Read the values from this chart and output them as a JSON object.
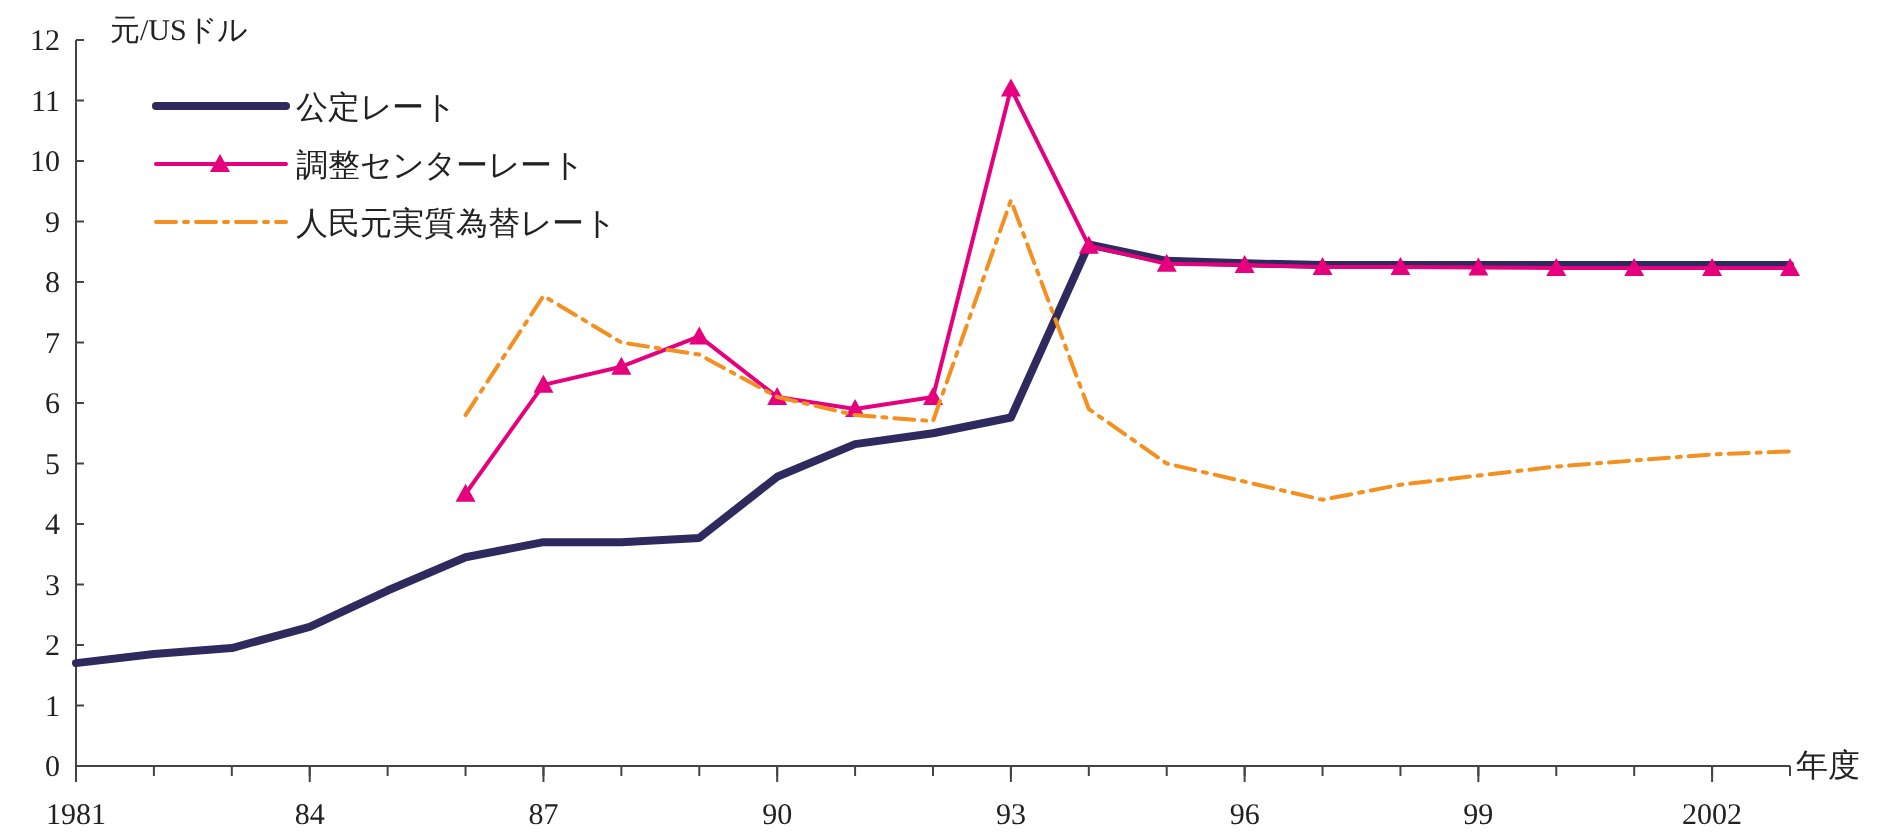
{
  "chart_data": {
    "type": "line",
    "xlabel": "年度",
    "ylabel": "元/USドル",
    "x": [
      1981,
      1982,
      1983,
      1984,
      1985,
      1986,
      1987,
      1988,
      1989,
      1990,
      1991,
      1992,
      1993,
      1994,
      1995,
      1996,
      1997,
      1998,
      1999,
      2000,
      2001,
      2002,
      2003
    ],
    "xlim": [
      1981,
      2003
    ],
    "xticks": [
      1981,
      {
        "value": 1984,
        "label": "84"
      },
      {
        "value": 1987,
        "label": "87"
      },
      {
        "value": 1990,
        "label": "90"
      },
      {
        "value": 1993,
        "label": "93"
      },
      {
        "value": 1996,
        "label": "96"
      },
      {
        "value": 1999,
        "label": "99"
      },
      2002
    ],
    "ylim": [
      0,
      12
    ],
    "yticks": [
      0,
      1,
      2,
      3,
      4,
      5,
      6,
      7,
      8,
      9,
      10,
      11,
      12
    ],
    "grid": false,
    "legend": "top left",
    "series": [
      {
        "name": "公定レート",
        "color": "#2e2a5e",
        "marker": "none",
        "line_style": "solid",
        "values": [
          1.7,
          1.85,
          1.95,
          2.3,
          2.9,
          3.45,
          3.7,
          3.7,
          3.77,
          4.78,
          5.32,
          5.5,
          5.76,
          8.62,
          8.35,
          8.31,
          8.28,
          8.28,
          8.28,
          8.28,
          8.28,
          8.28,
          8.28
        ]
      },
      {
        "name": "調整センターレート",
        "color": "#e6007e",
        "marker": "triangle",
        "line_style": "solid",
        "values": [
          null,
          null,
          null,
          null,
          null,
          4.5,
          6.3,
          6.6,
          7.1,
          6.1,
          5.9,
          6.1,
          11.2,
          8.6,
          8.3,
          8.28,
          8.25,
          8.25,
          8.24,
          8.23,
          8.23,
          8.23,
          8.23
        ]
      },
      {
        "name": "人民元実質為替レート",
        "color": "#f39020",
        "marker": "none",
        "line_style": "dashdot",
        "values": [
          null,
          null,
          null,
          null,
          null,
          5.8,
          7.77,
          7.0,
          6.8,
          6.1,
          5.8,
          5.7,
          9.35,
          5.9,
          5.0,
          4.7,
          4.4,
          4.65,
          4.8,
          4.95,
          5.05,
          5.15,
          5.2
        ]
      }
    ]
  }
}
